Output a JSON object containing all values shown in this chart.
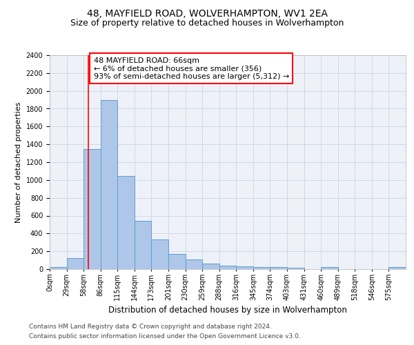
{
  "title": "48, MAYFIELD ROAD, WOLVERHAMPTON, WV1 2EA",
  "subtitle": "Size of property relative to detached houses in Wolverhampton",
  "xlabel": "Distribution of detached houses by size in Wolverhampton",
  "ylabel": "Number of detached properties",
  "footer1": "Contains HM Land Registry data © Crown copyright and database right 2024.",
  "footer2": "Contains public sector information licensed under the Open Government Licence v3.0.",
  "categories": [
    "0sqm",
    "29sqm",
    "58sqm",
    "86sqm",
    "115sqm",
    "144sqm",
    "173sqm",
    "201sqm",
    "230sqm",
    "259sqm",
    "288sqm",
    "316sqm",
    "345sqm",
    "374sqm",
    "403sqm",
    "431sqm",
    "460sqm",
    "489sqm",
    "518sqm",
    "546sqm",
    "575sqm"
  ],
  "values": [
    20,
    125,
    1350,
    1900,
    1045,
    540,
    335,
    168,
    110,
    65,
    40,
    30,
    25,
    20,
    15,
    0,
    20,
    0,
    0,
    0,
    20
  ],
  "bar_color": "#aec6e8",
  "bar_edge_color": "#5a9fd4",
  "bar_linewidth": 0.7,
  "grid_color": "#d0d8e8",
  "bg_color": "#eef2f8",
  "redline_x": 66,
  "annotation_text": "48 MAYFIELD ROAD: 66sqm\n← 6% of detached houses are smaller (356)\n93% of semi-detached houses are larger (5,312) →",
  "annotation_box_color": "white",
  "annotation_edge_color": "red",
  "ylim": [
    0,
    2400
  ],
  "yticks": [
    0,
    200,
    400,
    600,
    800,
    1000,
    1200,
    1400,
    1600,
    1800,
    2000,
    2200,
    2400
  ],
  "bin_width": 29,
  "title_fontsize": 10,
  "subtitle_fontsize": 9,
  "xlabel_fontsize": 8.5,
  "ylabel_fontsize": 8,
  "tick_fontsize": 7,
  "annotation_fontsize": 8,
  "footer_fontsize": 6.5
}
